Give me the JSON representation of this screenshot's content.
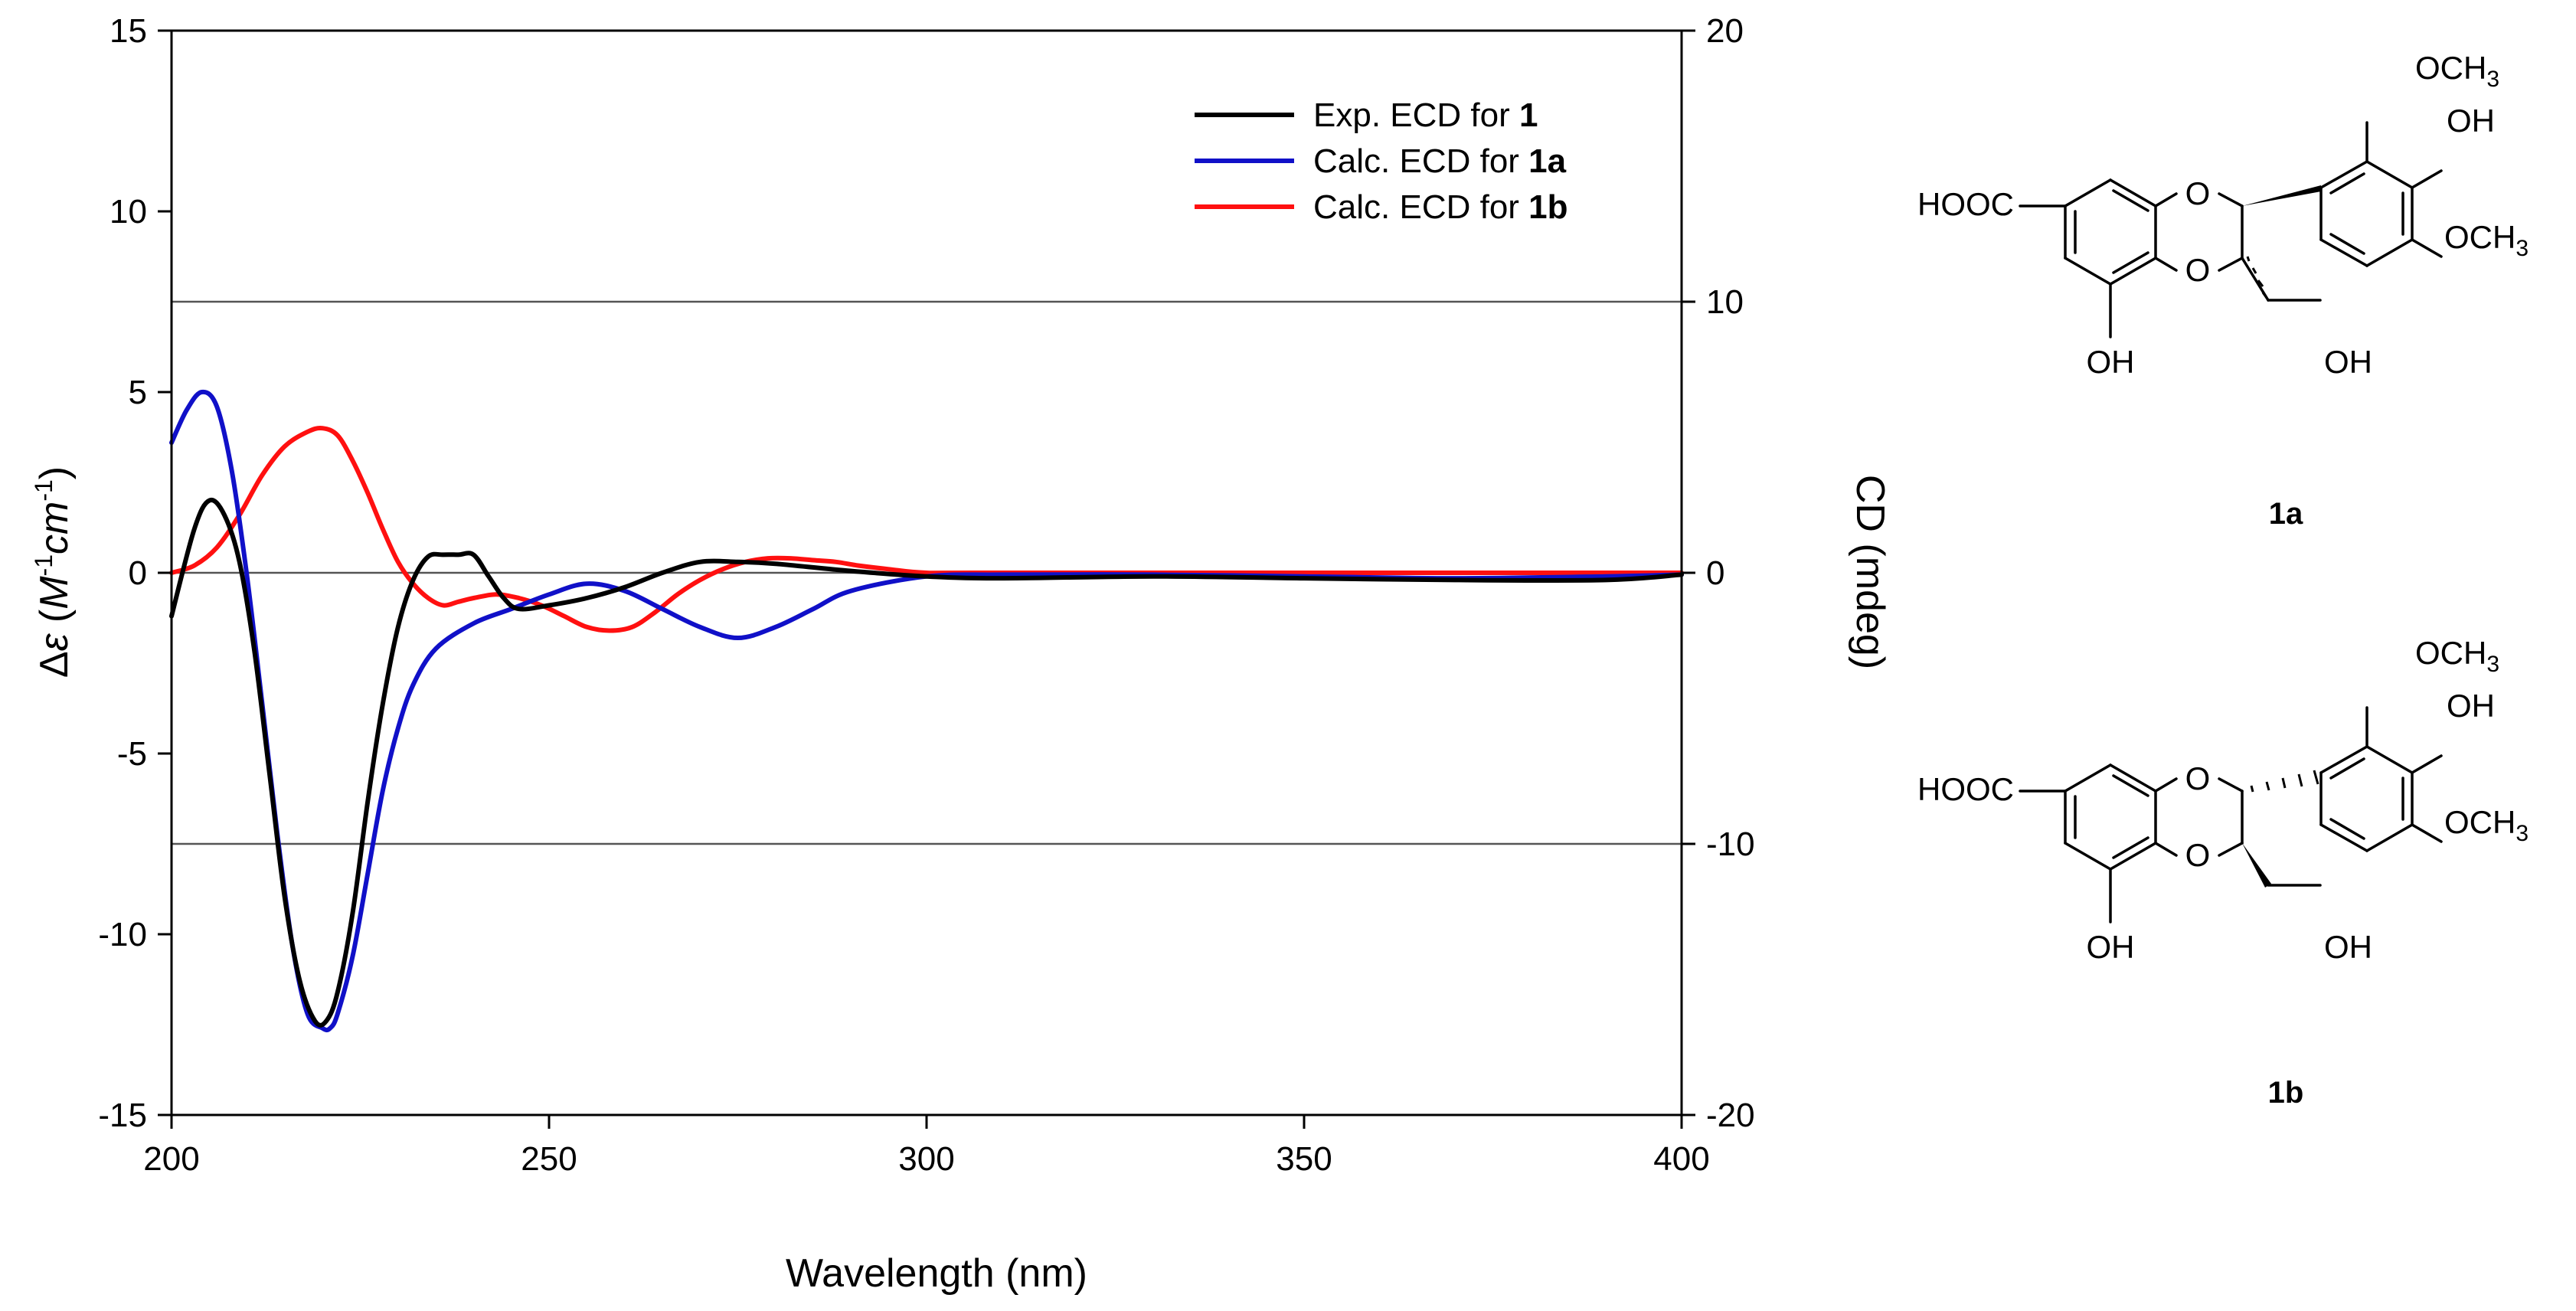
{
  "chart_data": {
    "type": "line",
    "xlabel": "Wavelength (nm)",
    "ylabel": {
      "delta": "Δ",
      "epsilon": "ε",
      "open": " (",
      "M": "M",
      "m_exp": "-1",
      "cm": "cm",
      "cm_exp": "-1",
      "close": ")"
    },
    "y2label": "CD (mdeg)",
    "xlim": [
      200,
      400
    ],
    "ylim": [
      -15,
      15
    ],
    "y2lim": [
      -20,
      20
    ],
    "xticks": [
      "200",
      "250",
      "300",
      "350",
      "400"
    ],
    "yticks": [
      "15",
      "10",
      "5",
      "0",
      "-5",
      "-10",
      "-15"
    ],
    "y2ticks": [
      "20",
      "10",
      "0",
      "-10",
      "-20"
    ],
    "reference_lines": [
      0,
      7.5,
      -7.5
    ],
    "legend": [
      {
        "prefix": "Exp. ECD for ",
        "bold": "1",
        "color": "#000000"
      },
      {
        "prefix": "Calc. ECD for ",
        "bold": "1a",
        "color": "#1010c8"
      },
      {
        "prefix": "Calc. ECD for ",
        "bold": "1b",
        "color": "#ff1010"
      }
    ],
    "series": [
      {
        "name": "Exp. ECD for 1",
        "color": "#000000",
        "x": [
          200,
          203,
          205,
          207,
          209,
          211,
          213,
          215,
          217,
          219,
          220.5,
          222,
          224,
          226,
          228,
          230,
          232,
          234,
          236,
          238,
          240,
          242,
          244,
          246,
          250,
          255,
          260,
          265,
          270,
          275,
          280,
          290,
          300,
          310,
          330,
          350,
          370,
          390,
          400
        ],
        "y": [
          -1.2,
          1.2,
          2.0,
          1.6,
          0.3,
          -2.2,
          -5.6,
          -9.0,
          -11.3,
          -12.4,
          -12.4,
          -11.6,
          -9.4,
          -6.3,
          -3.6,
          -1.5,
          -0.2,
          0.45,
          0.5,
          0.5,
          0.5,
          -0.1,
          -0.7,
          -1.0,
          -0.9,
          -0.7,
          -0.4,
          0.0,
          0.3,
          0.3,
          0.25,
          0.05,
          -0.1,
          -0.15,
          -0.1,
          -0.15,
          -0.2,
          -0.2,
          -0.05
        ]
      },
      {
        "name": "Calc. ECD for 1a",
        "color": "#1010c8",
        "x": [
          200,
          202,
          204,
          206,
          208,
          210,
          212,
          214,
          216,
          218,
          220,
          221,
          222,
          224,
          226,
          228,
          230,
          232,
          235,
          240,
          245,
          250,
          255,
          260,
          265,
          270,
          275,
          280,
          285,
          290,
          300,
          310,
          330,
          350,
          370,
          390,
          400
        ],
        "y": [
          3.6,
          4.5,
          5.0,
          4.6,
          2.8,
          -0.1,
          -3.6,
          -7.2,
          -10.3,
          -12.2,
          -12.6,
          -12.6,
          -12.2,
          -10.6,
          -8.3,
          -6.0,
          -4.3,
          -3.1,
          -2.1,
          -1.4,
          -1.0,
          -0.6,
          -0.3,
          -0.5,
          -1.0,
          -1.5,
          -1.8,
          -1.5,
          -1.0,
          -0.5,
          -0.1,
          -0.05,
          -0.05,
          -0.1,
          -0.15,
          -0.1,
          -0.05
        ]
      },
      {
        "name": "Calc. ECD for 1b",
        "color": "#ff1010",
        "x": [
          200,
          203,
          206,
          209,
          212,
          215,
          218,
          220,
          222,
          224,
          226,
          228,
          230,
          232,
          234,
          236,
          238,
          240,
          243,
          246,
          249,
          252,
          255,
          258,
          261,
          264,
          267,
          270,
          273,
          276,
          279,
          282,
          285,
          288,
          291,
          295,
          300,
          310,
          400
        ],
        "y": [
          0.0,
          0.2,
          0.7,
          1.6,
          2.7,
          3.5,
          3.9,
          4.0,
          3.8,
          3.1,
          2.2,
          1.2,
          0.3,
          -0.3,
          -0.7,
          -0.9,
          -0.8,
          -0.7,
          -0.6,
          -0.7,
          -0.9,
          -1.2,
          -1.5,
          -1.6,
          -1.5,
          -1.1,
          -0.6,
          -0.2,
          0.1,
          0.3,
          0.4,
          0.4,
          0.35,
          0.3,
          0.2,
          0.1,
          0.0,
          0.0,
          0.0
        ]
      }
    ]
  },
  "structures": [
    {
      "label": "1a",
      "ome_top": "OCH",
      "ome_top_sub": "3",
      "oh_para": "OH",
      "ome_meta": "OCH",
      "ome_meta_sub": "3",
      "cooh": "HOOC",
      "ring_o1": "O",
      "ring_o2": "O",
      "oh_phenol": "OH",
      "oh_ch2": "OH"
    },
    {
      "label": "1b",
      "ome_top": "OCH",
      "ome_top_sub": "3",
      "oh_para": "OH",
      "ome_meta": "OCH",
      "ome_meta_sub": "3",
      "cooh": "HOOC",
      "ring_o1": "O",
      "ring_o2": "O",
      "oh_phenol": "OH",
      "oh_ch2": "OH"
    }
  ]
}
